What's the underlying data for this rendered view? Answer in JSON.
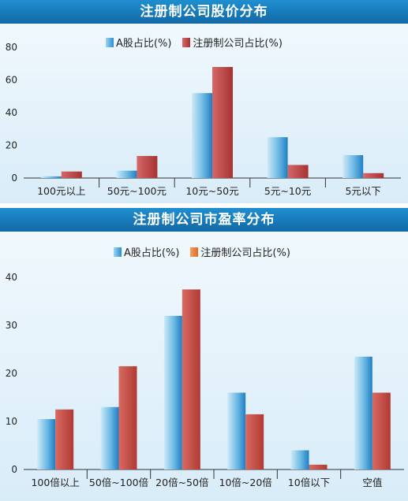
{
  "colors": {
    "banner": "#1a7cc0",
    "bar_a": "#3a9bd8",
    "bar_reg_price": "#b83c3c",
    "bar_reg_pe": "#c84a42",
    "legend_swatch_pe": "#ec8a44"
  },
  "chart_data": [
    {
      "type": "bar",
      "title": "注册制公司股价分布",
      "categories": [
        "100元以上",
        "50元~100元",
        "10元~50元",
        "5元~10元",
        "5元以下"
      ],
      "series": [
        {
          "name": "A股占比(%)",
          "values": [
            1,
            4.5,
            52,
            25,
            14
          ]
        },
        {
          "name": "注册制公司占比(%)",
          "values": [
            4,
            13.5,
            68,
            8,
            3
          ]
        }
      ],
      "yticks": [
        0,
        20,
        40,
        60,
        80
      ],
      "ylim": [
        0,
        82
      ],
      "grid": false,
      "legend_position": "top"
    },
    {
      "type": "bar",
      "title": "注册制公司市盈率分布",
      "categories": [
        "100倍以上",
        "50倍~100倍",
        "20倍~50倍",
        "10倍~20倍",
        "10倍以下",
        "空值"
      ],
      "series": [
        {
          "name": "A股占比(%)",
          "values": [
            10.5,
            13,
            32,
            16,
            4,
            23.5
          ]
        },
        {
          "name": "注册制公司占比(%)",
          "values": [
            12.5,
            21.5,
            37.5,
            11.5,
            1,
            16
          ]
        }
      ],
      "yticks": [
        0,
        10,
        20,
        30,
        40
      ],
      "ylim": [
        0,
        42
      ],
      "grid": false,
      "legend_position": "top"
    }
  ]
}
